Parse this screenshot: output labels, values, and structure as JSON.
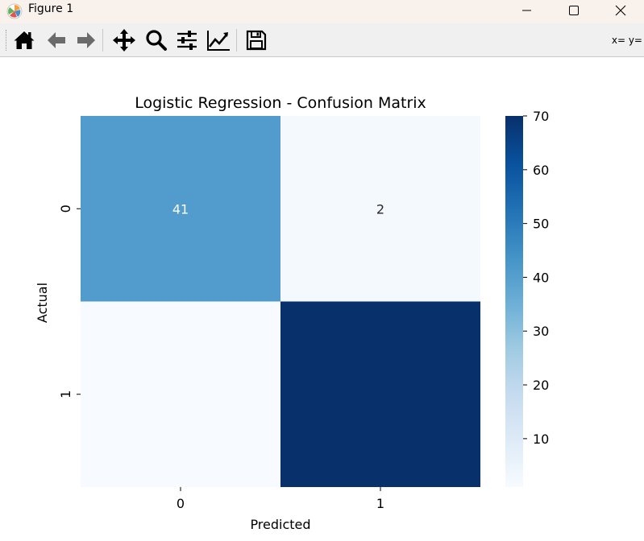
{
  "window": {
    "title": "Figure 1",
    "controls": [
      "minimize",
      "maximize",
      "close"
    ]
  },
  "toolbar": {
    "buttons": [
      {
        "name": "home",
        "icon": "home-icon"
      },
      {
        "name": "back",
        "icon": "arrow-left-icon"
      },
      {
        "name": "forward",
        "icon": "arrow-right-icon"
      },
      {
        "name": "pan",
        "icon": "move-icon"
      },
      {
        "name": "zoom",
        "icon": "magnifier-icon"
      },
      {
        "name": "configure-subplots",
        "icon": "sliders-icon"
      },
      {
        "name": "edit-axis",
        "icon": "line-chart-icon"
      },
      {
        "name": "save",
        "icon": "floppy-disk-icon"
      }
    ],
    "coords_text": "x= y="
  },
  "chart_data": {
    "type": "heatmap",
    "title": "Logistic Regression - Confusion Matrix",
    "xlabel": "Predicted",
    "ylabel": "Actual",
    "x_categories": [
      "0",
      "1"
    ],
    "y_categories": [
      "0",
      "1"
    ],
    "values": [
      [
        41,
        2
      ],
      [
        1,
        70
      ]
    ],
    "annotations": [
      [
        "41",
        "2"
      ],
      [
        "",
        ""
      ]
    ],
    "colormap": "Blues",
    "colorbar": {
      "vmin": 1,
      "vmax": 70,
      "ticks": [
        10,
        20,
        30,
        40,
        50,
        60,
        70
      ],
      "tick_labels": [
        "10",
        "20",
        "30",
        "40",
        "50",
        "60",
        "70"
      ]
    },
    "grid": false
  }
}
